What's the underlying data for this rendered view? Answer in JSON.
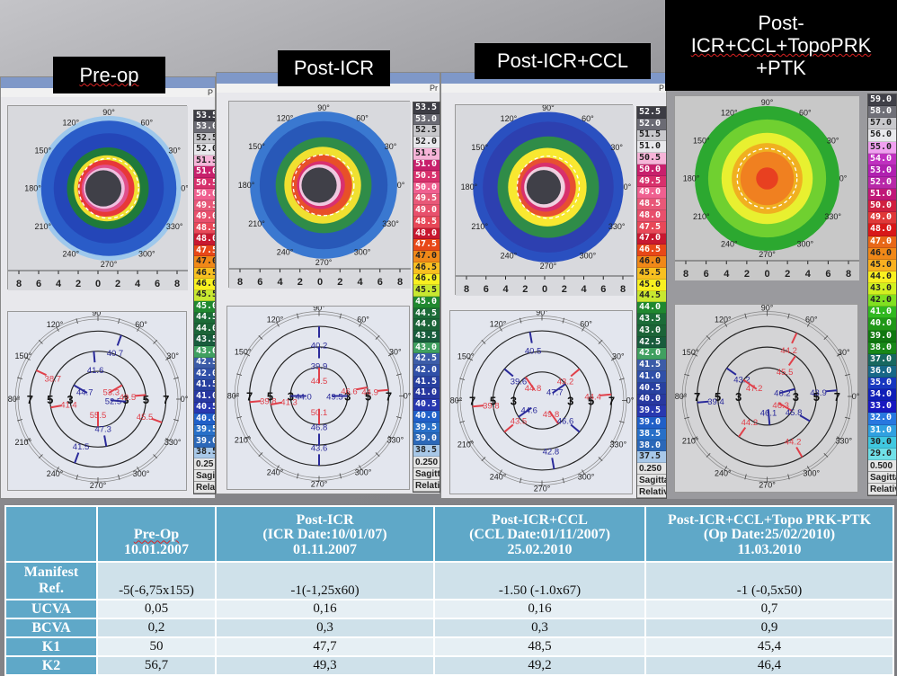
{
  "panels": [
    {
      "title": "Pre-op",
      "menu_fragment": "P",
      "scale": [
        "53.5",
        "53.0",
        "52.5",
        "52.0",
        "51.5",
        "51.0",
        "50.5",
        "50.0",
        "49.5",
        "49.0",
        "48.5",
        "48.0",
        "47.5",
        "47.0",
        "46.5",
        "46.0",
        "45.5",
        "45.0",
        "44.5",
        "44.0",
        "43.5",
        "43.0",
        "42.5",
        "42.0",
        "41.5",
        "41.0",
        "40.5",
        "40.0",
        "39.5",
        "39.0",
        "38.5"
      ],
      "scale_step": "0.25",
      "scale_type": "Sagittal",
      "scale_mode": "Relative",
      "polar_values": [
        {
          "value": "40.7",
          "color": "blue",
          "angle": 70,
          "ring": "outer"
        },
        {
          "value": "41.6",
          "color": "blue",
          "angle": 95,
          "ring": "mid"
        },
        {
          "value": "38.7",
          "color": "red",
          "angle": 155,
          "ring": "outer"
        },
        {
          "value": "41.4",
          "color": "red",
          "angle": 190,
          "ring": "mid"
        },
        {
          "value": "44.7",
          "color": "blue",
          "angle": 150,
          "ring": "inner"
        },
        {
          "value": "53.3",
          "color": "red",
          "angle": 30,
          "ring": "inner"
        },
        {
          "value": "52.5",
          "color": "blue",
          "angle": -5,
          "ring": "inner"
        },
        {
          "value": "49.5",
          "color": "red",
          "angle": 5,
          "ring": "mid"
        },
        {
          "value": "55.5",
          "color": "red",
          "angle": 270,
          "ring": "inner"
        },
        {
          "value": "45.5",
          "color": "red",
          "angle": 340,
          "ring": "outer"
        },
        {
          "value": "47.3",
          "color": "blue",
          "angle": 280,
          "ring": "mid"
        },
        {
          "value": "41.5",
          "color": "blue",
          "angle": 250,
          "ring": "outer"
        }
      ]
    },
    {
      "title": "Post-ICR",
      "menu_fragment": "Pr",
      "scale": [
        "53.5",
        "53.0",
        "52.5",
        "52.0",
        "51.5",
        "51.0",
        "50.5",
        "50.0",
        "49.5",
        "49.0",
        "48.5",
        "48.0",
        "47.5",
        "47.0",
        "46.5",
        "46.0",
        "45.5",
        "45.0",
        "44.5",
        "44.0",
        "43.5",
        "43.0",
        "42.5",
        "42.0",
        "41.5",
        "41.0",
        "40.5",
        "40.0",
        "39.5",
        "39.0",
        "38.5"
      ],
      "scale_step": "0.250",
      "scale_type": "Sagittal",
      "scale_mode": "Relative",
      "polar_values": [
        {
          "value": "40.2",
          "color": "blue",
          "angle": 90,
          "ring": "outer"
        },
        {
          "value": "39.9",
          "color": "blue",
          "angle": 90,
          "ring": "mid"
        },
        {
          "value": "44.5",
          "color": "red",
          "angle": 90,
          "ring": "inner"
        },
        {
          "value": "39.8",
          "color": "red",
          "angle": 185,
          "ring": "outer"
        },
        {
          "value": "41.3",
          "color": "red",
          "angle": 190,
          "ring": "mid"
        },
        {
          "value": "44.0",
          "color": "blue",
          "angle": 180,
          "ring": "inner"
        },
        {
          "value": "49.5",
          "color": "blue",
          "angle": 0,
          "ring": "inner"
        },
        {
          "value": "46.6",
          "color": "red",
          "angle": 10,
          "ring": "mid"
        },
        {
          "value": "44.9",
          "color": "red",
          "angle": 5,
          "ring": "outer"
        },
        {
          "value": "50.1",
          "color": "red",
          "angle": 270,
          "ring": "inner"
        },
        {
          "value": "46.8",
          "color": "blue",
          "angle": 270,
          "ring": "mid"
        },
        {
          "value": "43.6",
          "color": "blue",
          "angle": 270,
          "ring": "outer"
        }
      ]
    },
    {
      "title": "Post-ICR+CCL",
      "menu_fragment": "P",
      "scale": [
        "52.5",
        "52.0",
        "51.5",
        "51.0",
        "50.5",
        "50.0",
        "49.5",
        "49.0",
        "48.5",
        "48.0",
        "47.5",
        "47.0",
        "46.5",
        "46.0",
        "45.5",
        "45.0",
        "44.5",
        "44.0",
        "43.5",
        "43.0",
        "42.5",
        "42.0",
        "41.5",
        "41.0",
        "40.5",
        "40.0",
        "39.5",
        "39.0",
        "38.5",
        "38.0",
        "37.5"
      ],
      "scale_step": "0.250",
      "scale_type": "Sagittal",
      "scale_mode": "Relative",
      "polar_values": [
        {
          "value": "40.5",
          "color": "blue",
          "angle": 100,
          "ring": "outer"
        },
        {
          "value": "39.6",
          "color": "blue",
          "angle": 140,
          "ring": "mid"
        },
        {
          "value": "44.8",
          "color": "red",
          "angle": 125,
          "ring": "inner"
        },
        {
          "value": "43.2",
          "color": "red",
          "angle": 40,
          "ring": "mid"
        },
        {
          "value": "47.7",
          "color": "blue",
          "angle": 35,
          "ring": "inner"
        },
        {
          "value": "39.8",
          "color": "red",
          "angle": 185,
          "ring": "outer"
        },
        {
          "value": "44.6",
          "color": "blue",
          "angle": 215,
          "ring": "inner"
        },
        {
          "value": "49.8",
          "color": "red",
          "angle": 305,
          "ring": "inner"
        },
        {
          "value": "44.4",
          "color": "red",
          "angle": 5,
          "ring": "outer"
        },
        {
          "value": "43.5",
          "color": "red",
          "angle": 220,
          "ring": "mid"
        },
        {
          "value": "46.6",
          "color": "blue",
          "angle": 320,
          "ring": "mid"
        },
        {
          "value": "42.8",
          "color": "blue",
          "angle": 280,
          "ring": "outer"
        }
      ]
    },
    {
      "title": "Post-ICR+CCL+TopoPRK+PTK",
      "title_lines": [
        "Post-",
        "ICR+CCL+TopoPRK",
        "+PTK"
      ],
      "menu_fragment": "",
      "scale": [
        "59.0",
        "58.0",
        "57.0",
        "56.0",
        "55.0",
        "54.0",
        "53.0",
        "52.0",
        "51.0",
        "50.0",
        "49.0",
        "48.0",
        "47.0",
        "46.0",
        "45.0",
        "44.0",
        "43.0",
        "42.0",
        "41.0",
        "40.0",
        "39.0",
        "38.0",
        "37.0",
        "36.0",
        "35.0",
        "34.0",
        "33.0",
        "32.0",
        "31.0",
        "30.0",
        "29.0"
      ],
      "scale_step": "0.500",
      "scale_type": "Sagittal",
      "scale_mode": "Relative",
      "polar_values": [
        {
          "value": "44.2",
          "color": "red",
          "angle": 65,
          "ring": "outer"
        },
        {
          "value": "45.5",
          "color": "red",
          "angle": 55,
          "ring": "mid"
        },
        {
          "value": "43.2",
          "color": "blue",
          "angle": 145,
          "ring": "mid"
        },
        {
          "value": "47.2",
          "color": "red",
          "angle": 145,
          "ring": "inner"
        },
        {
          "value": "46.2",
          "color": "blue",
          "angle": 15,
          "ring": "inner"
        },
        {
          "value": "39.4",
          "color": "blue",
          "angle": 185,
          "ring": "outer"
        },
        {
          "value": "43.9",
          "color": "blue",
          "angle": 5,
          "ring": "outer"
        },
        {
          "value": "46.3",
          "color": "red",
          "angle": 330,
          "ring": "inner"
        },
        {
          "value": "46.1",
          "color": "blue",
          "angle": 275,
          "ring": "inner"
        },
        {
          "value": "45.8",
          "color": "blue",
          "angle": 330,
          "ring": "mid"
        },
        {
          "value": "44.2",
          "color": "red",
          "angle": 235,
          "ring": "mid"
        },
        {
          "value": "44.2",
          "color": "red",
          "angle": 300,
          "ring": "outer"
        }
      ]
    }
  ],
  "axis_ticks": [
    "8",
    "6",
    "4",
    "2",
    "0",
    "2",
    "4",
    "6",
    "8"
  ],
  "angle_labels": [
    "90°",
    "60°",
    "30°",
    "0°",
    "330°",
    "300°",
    "270°",
    "240°",
    "210°",
    "180°",
    "150°",
    "120°"
  ],
  "ring_labels": [
    "3",
    "5",
    "7"
  ],
  "scale_colors": {
    "range_a": [
      "#3c3c44",
      "#6b6b74",
      "#c8c8cc",
      "#e8e8ec",
      "#f6b4d8",
      "#c8206c",
      "#d8306c",
      "#f06090",
      "#e85878",
      "#e8506c",
      "#e84858",
      "#c81830",
      "#e84818",
      "#f08818",
      "#f8c020",
      "#f8f020",
      "#c8e830",
      "#208830",
      "#1c6c38",
      "#1c6438",
      "#185c3c",
      "#40a060",
      "#3c5ca8",
      "#3050a8",
      "#2840a0",
      "#2838a0",
      "#2838b0",
      "#2060c8",
      "#2870c8",
      "#2c68b8",
      "#a8c8e8"
    ],
    "range_d": [
      "#404048",
      "#707078",
      "#c8c8cc",
      "#e8e8ec",
      "#f0a0f0",
      "#c030c0",
      "#b020b0",
      "#b828a8",
      "#c01878",
      "#d02040",
      "#e03838",
      "#d81818",
      "#e86818",
      "#f08818",
      "#f8b020",
      "#f8f020",
      "#d0f020",
      "#80e020",
      "#30b820",
      "#209818",
      "#107810",
      "#188818",
      "#186860",
      "#186888",
      "#1838c0",
      "#1020b8",
      "#1818c0",
      "#2878e0",
      "#30a0e0",
      "#40c8e0",
      "#70e0e8"
    ]
  },
  "table": {
    "headers": [
      {
        "lines": [
          ""
        ]
      },
      {
        "lines": [
          "Pre-Op",
          "10.01.2007"
        ]
      },
      {
        "lines": [
          "Post-ICR",
          "(ICR Date:10/01/07)",
          "01.11.2007"
        ]
      },
      {
        "lines": [
          "Post-ICR+CCL",
          "(CCL Date:01/11/2007)",
          "25.02.2010"
        ]
      },
      {
        "lines": [
          "Post-ICR+CCL+Topo PRK-PTK",
          "(Op Date:25/02/2010)",
          "11.03.2010"
        ]
      }
    ],
    "rows": [
      {
        "label_lines": [
          "Manifest",
          "Ref."
        ],
        "values": [
          "-5(-6,75x155)",
          "-1(-1,25x60)",
          "-1.50 (-1.0x67)",
          "-1 (-0,5x50)"
        ]
      },
      {
        "label_lines": [
          "UCVA"
        ],
        "values": [
          "0,05",
          "0,16",
          "0,16",
          "0,7"
        ]
      },
      {
        "label_lines": [
          "BCVA"
        ],
        "values": [
          "0,2",
          "0,3",
          "0,3",
          "0,9"
        ]
      },
      {
        "label_lines": [
          "K1"
        ],
        "values": [
          "50",
          "47,7",
          "48,5",
          "45,4"
        ]
      },
      {
        "label_lines": [
          "K2"
        ],
        "values": [
          "56,7",
          "49,3",
          "49,2",
          "46,4"
        ]
      }
    ]
  }
}
